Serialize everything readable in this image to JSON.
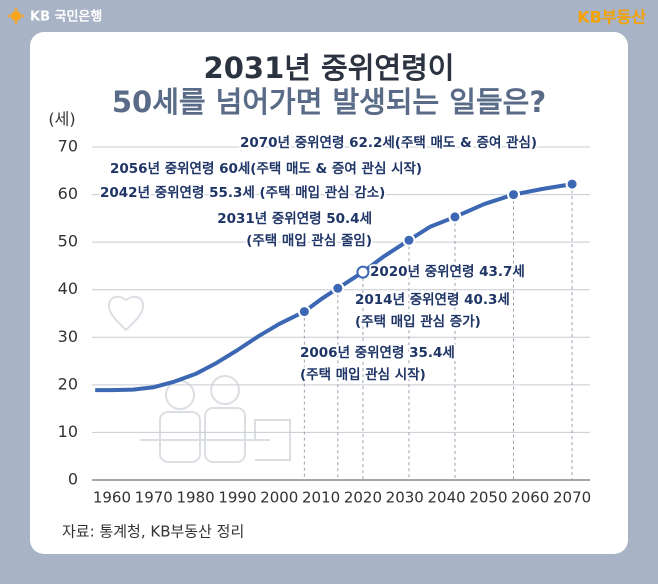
{
  "header": {
    "bank": "KB 국민은행",
    "brand": "KB부동산"
  },
  "chart_data": {
    "type": "line",
    "title": "2031년 중위연령이",
    "subtitle": "50세를 넘어가면 발생되는 일들은?",
    "y_label": "(세)",
    "source": "자료: 통계청, KB부동산 정리",
    "color": "#3c68b3",
    "x": [
      1956,
      1960,
      1965,
      1970,
      1975,
      1980,
      1985,
      1990,
      1995,
      2000,
      2006,
      2010,
      2014,
      2020,
      2025,
      2031,
      2036,
      2042,
      2049,
      2056,
      2063,
      2070
    ],
    "values": [
      18.9,
      18.9,
      19.0,
      19.5,
      20.7,
      22.3,
      24.6,
      27.3,
      30.2,
      32.8,
      35.4,
      38.0,
      40.3,
      43.7,
      47.0,
      50.4,
      53.2,
      55.3,
      58.0,
      60.0,
      61.2,
      62.2
    ],
    "markers": {
      "x": [
        2006,
        2014,
        2020,
        2031,
        2042,
        2056,
        2070
      ],
      "values": [
        35.4,
        40.3,
        43.7,
        50.4,
        55.3,
        60.0,
        62.2
      ],
      "hollow": [
        false,
        false,
        true,
        false,
        false,
        false,
        false
      ]
    },
    "annotations": [
      [
        "2006년 중위연령 35.4세",
        "(주택 매입 관심 시작)"
      ],
      [
        "2014년 중위연령 40.3세",
        "(주택 매입 관심 증가)"
      ],
      [
        "2020년 중위연령 43.7세"
      ],
      [
        "2031년 중위연령 50.4세",
        "(주택 매입 관심 줄임)"
      ],
      [
        "2042년 중위연령 55.3세 (주택 매입 관심 감소)"
      ],
      [
        "2056년 중위연령 60세(주택 매도 & 증여 관심 시작)"
      ],
      [
        "2070년 중위연령 62.2세(주택 매도 & 증여 관심)"
      ]
    ],
    "xlim": [
      1955,
      2075
    ],
    "xticks": [
      1960,
      1970,
      1980,
      1990,
      2000,
      2010,
      2020,
      2030,
      2040,
      2050,
      2060,
      2070
    ],
    "ylim": [
      0,
      70
    ],
    "yticks": [
      0,
      10,
      20,
      30,
      40,
      50,
      60,
      70
    ],
    "grid": true
  }
}
